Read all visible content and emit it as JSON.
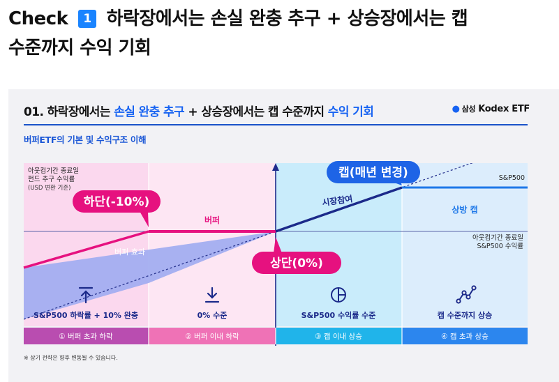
{
  "heading": {
    "check_label": "Check",
    "step_number": "1",
    "text_line1": "하락장에서는 손실 완충 추구 + 상승장에서는 캡",
    "text_line2": "수준까지 수익 기회"
  },
  "card": {
    "title_part1": "01. 하락장에서는 ",
    "title_highlight1": "손실 완충 추구",
    "title_part2": " + 상승장에서는 캡 수준까지 ",
    "title_highlight2": "수익 기회",
    "brand_name": "삼성",
    "brand_product": "Kodex ETF",
    "subtitle": "버퍼ETF의 기본 및 수익구조 이해",
    "footnote": "※ 상기 전략은 향후 변동될 수 있습니다."
  },
  "diagram": {
    "y_axis_label_line1": "아웃컴기간 종료일",
    "y_axis_label_line2": "펀드 추구 수익률",
    "y_axis_label_line3": "(USD 변환 기준)",
    "x_axis_label_line1": "아웃컴기간 종료일",
    "x_axis_label_line2": "S&P500 수익률",
    "sp500_line_label": "S&P500",
    "buffer_label": "버퍼",
    "buffer_effect_label": "버퍼 효과",
    "rising_label": "시장참여",
    "upside_cap_label": "상방 캡",
    "callout_lower": "하단(-10%)",
    "callout_upper": "상단(0%)",
    "callout_cap": "캡(매년 변경)",
    "colors": {
      "zone1": "#fbd8ee",
      "zone2": "#fde6f3",
      "zone3": "#c9ecfb",
      "zone4": "#dcedfc",
      "fund_pink": "#e6117f",
      "fund_navy": "#1b2a8a",
      "cap_blue": "#1e78e8",
      "buffer_fill": "#a3aef0",
      "axis": "#1f2a8c"
    },
    "scenarios": [
      {
        "icon": "arrow-up-icon",
        "outcome": "S&P500 하락률 + 10% 완충",
        "label": "① 버퍼 초과 하락",
        "color": "#b94db0"
      },
      {
        "icon": "arrow-down-icon",
        "outcome": "0% 수준",
        "label": "② 버퍼 이내 하락",
        "color": "#ef72b6"
      },
      {
        "icon": "split-circle-icon",
        "outcome": "S&P500 수익률 수준",
        "label": "③ 캡 이내 상승",
        "color": "#20b4ea"
      },
      {
        "icon": "trend-line-icon",
        "outcome": "캡 수준까지 상승",
        "label": "④ 캡 초과 상승",
        "color": "#2c86ee"
      }
    ]
  }
}
